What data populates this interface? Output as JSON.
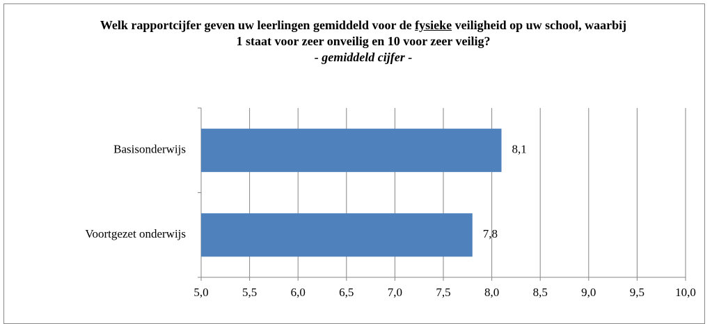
{
  "chart_data": {
    "type": "bar",
    "orientation": "horizontal",
    "title": [
      "Welk rapportcijfer geven uw  leerlingen gemiddeld voor de ",
      "fysieke",
      " veiligheid op uw school, waarbij 1 staat voor zeer onveilig en 10 voor zeer veilig?"
    ],
    "subtitle": "- gemiddeld cijfer -",
    "categories": [
      "Basisonderwijs",
      "Voortgezet onderwijs"
    ],
    "values": [
      8.1,
      7.8
    ],
    "value_labels": [
      "8,1",
      "7,8"
    ],
    "color": "#4f81bd",
    "xlim": [
      5,
      10
    ],
    "xticks": [
      {
        "value": 5,
        "label": "5,0"
      },
      {
        "value": 5.5,
        "label": "5,5"
      },
      {
        "value": 6,
        "label": "6,0"
      },
      {
        "value": 6.5,
        "label": "6,5"
      },
      {
        "value": 7,
        "label": "7,0"
      },
      {
        "value": 7.5,
        "label": "7,5"
      },
      {
        "value": 8,
        "label": "8,0"
      },
      {
        "value": 8.5,
        "label": "8,5"
      },
      {
        "value": 9,
        "label": "9,0"
      },
      {
        "value": 9.5,
        "label": "9,5"
      },
      {
        "value": 10,
        "label": "10,0"
      }
    ],
    "grid": true
  }
}
